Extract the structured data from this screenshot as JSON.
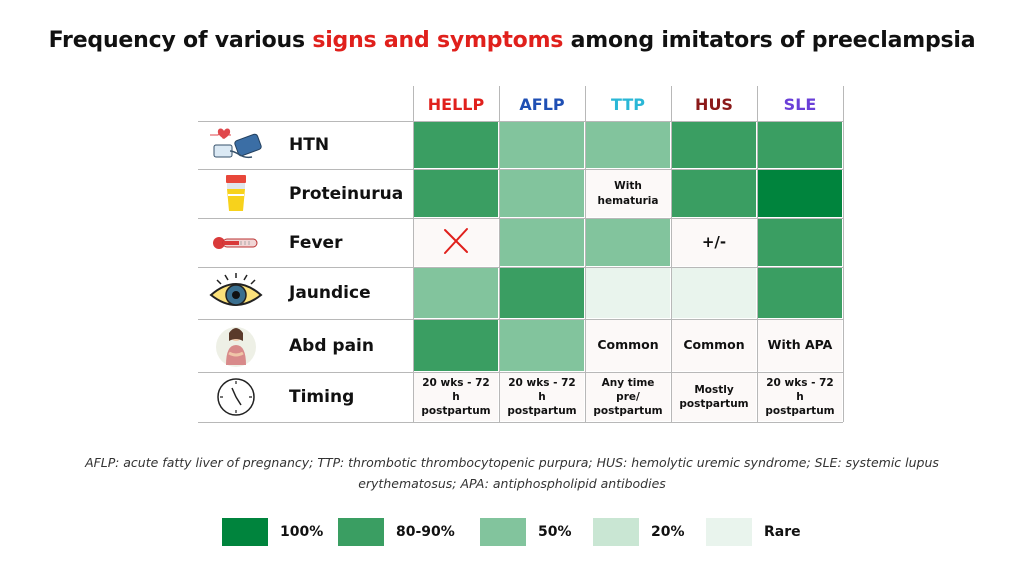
{
  "title": {
    "before": "Frequency of various ",
    "highlight": "signs and symptoms",
    "after": " among imitators of preeclampsia"
  },
  "chart_data": {
    "type": "heatmap",
    "columns": [
      {
        "label": "HELLP",
        "color": "#e0201c"
      },
      {
        "label": "AFLP",
        "color": "#1f4fb4"
      },
      {
        "label": "TTP",
        "color": "#2ab7d6"
      },
      {
        "label": "HUS",
        "color": "#8b1a1a"
      },
      {
        "label": "SLE",
        "color": "#6a3fd8"
      }
    ],
    "rows": [
      {
        "label": "HTN",
        "icon": "blood-pressure-monitor-icon",
        "cells": [
          {
            "level": "80-90%"
          },
          {
            "level": "50%"
          },
          {
            "level": "50%"
          },
          {
            "level": "80-90%"
          },
          {
            "level": "80-90%"
          }
        ]
      },
      {
        "label": "Proteinurua",
        "icon": "urine-sample-cup-icon",
        "cells": [
          {
            "level": "80-90%"
          },
          {
            "level": "50%"
          },
          {
            "level": "none",
            "text": "With hematuria"
          },
          {
            "level": "80-90%"
          },
          {
            "level": "100%"
          }
        ]
      },
      {
        "label": "Fever",
        "icon": "thermometer-icon",
        "cells": [
          {
            "level": "none",
            "mark": "x-mark"
          },
          {
            "level": "50%"
          },
          {
            "level": "50%"
          },
          {
            "level": "none",
            "text": "+/-"
          },
          {
            "level": "80-90%"
          }
        ]
      },
      {
        "label": "Jaundice",
        "icon": "yellow-eye-icon",
        "cells": [
          {
            "level": "50%"
          },
          {
            "level": "80-90%"
          },
          {
            "level": "Rare"
          },
          {
            "level": "Rare"
          },
          {
            "level": "80-90%"
          }
        ]
      },
      {
        "label": "Abd pain",
        "icon": "abdominal-pain-woman-icon",
        "cells": [
          {
            "level": "80-90%"
          },
          {
            "level": "50%"
          },
          {
            "level": "none",
            "text": "Common"
          },
          {
            "level": "none",
            "text": "Common"
          },
          {
            "level": "none",
            "text": "With APA"
          }
        ]
      },
      {
        "label": "Timing",
        "icon": "clock-icon",
        "cells": [
          {
            "level": "none",
            "text": "20 wks - 72 h postpartum"
          },
          {
            "level": "none",
            "text": "20 wks - 72 h postpartum"
          },
          {
            "level": "none",
            "text": "Any time pre/ postpartum"
          },
          {
            "level": "none",
            "text": "Mostly postpartum"
          },
          {
            "level": "none",
            "text": "20 wks - 72 h postpartum"
          }
        ]
      }
    ],
    "legend": [
      {
        "label": "100%",
        "color": "#00843d"
      },
      {
        "label": "80-90%",
        "color": "#3a9e62"
      },
      {
        "label": "50%",
        "color": "#82c49d"
      },
      {
        "label": "20%",
        "color": "#c9e6d3"
      },
      {
        "label": "Rare",
        "color": "#e9f4ed"
      }
    ],
    "none_color": "#fcf9f8"
  },
  "footnote": {
    "line1": "AFLP: acute fatty liver of pregnancy; TTP: thrombotic thrombocytopenic purpura; HUS: hemolytic uremic syndrome; SLE: systemic lupus",
    "line2": "erythematosus; APA: antiphospholipid antibodies"
  }
}
